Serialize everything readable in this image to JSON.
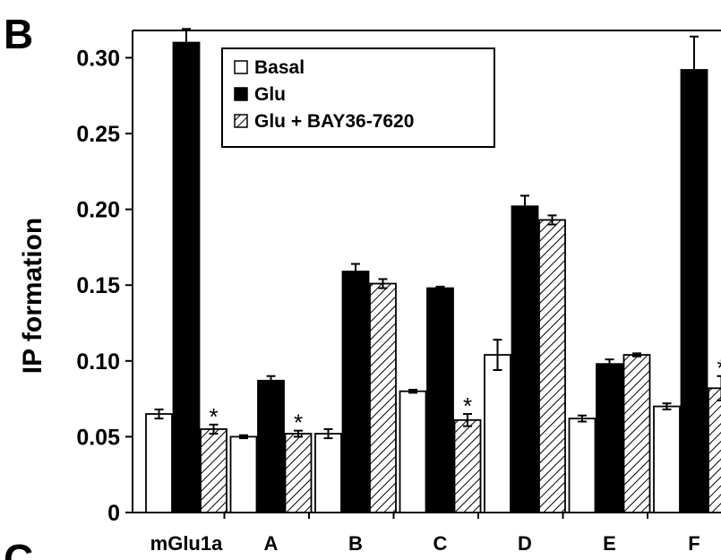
{
  "panel_label": "B",
  "next_panel_label": "C",
  "chart_data": {
    "type": "bar",
    "ylabel": "IP formation",
    "xlabel": "",
    "ylim": [
      0,
      0.32
    ],
    "yticks": [
      0,
      0.05,
      0.1,
      0.15,
      0.2,
      0.25,
      0.3
    ],
    "ytick_labels": [
      "0",
      "0.05",
      "0.10",
      "0.15",
      "0.20",
      "0.25",
      "0.30"
    ],
    "categories": [
      "mGlu1a",
      "A",
      "B",
      "C",
      "D",
      "E",
      "F"
    ],
    "series": [
      {
        "name": "Basal",
        "fill": "#ffffff",
        "pattern": "none",
        "values": [
          0.065,
          0.05,
          0.052,
          0.08,
          0.104,
          0.062,
          0.07
        ],
        "errors": [
          0.003,
          0.001,
          0.003,
          0.001,
          0.01,
          0.002,
          0.002
        ]
      },
      {
        "name": "Glu",
        "fill": "#000000",
        "pattern": "none",
        "values": [
          0.31,
          0.087,
          0.159,
          0.148,
          0.202,
          0.098,
          0.292
        ],
        "errors": [
          0.009,
          0.003,
          0.005,
          0.001,
          0.007,
          0.003,
          0.022
        ]
      },
      {
        "name": "Glu + BAY36-7620",
        "fill": "#ffffff",
        "pattern": "hatch",
        "values": [
          0.055,
          0.052,
          0.151,
          0.061,
          0.193,
          0.104,
          0.082
        ],
        "errors": [
          0.003,
          0.002,
          0.003,
          0.004,
          0.003,
          0.001,
          0.008
        ]
      }
    ],
    "annotations": [
      {
        "text": "*",
        "category": "mGlu1a",
        "series": 2
      },
      {
        "text": "*",
        "category": "A",
        "series": 2
      },
      {
        "text": "*",
        "category": "C",
        "series": 2
      },
      {
        "text": "*",
        "category": "F",
        "series": 2
      }
    ],
    "legend_position": "top-left",
    "grid": false
  }
}
